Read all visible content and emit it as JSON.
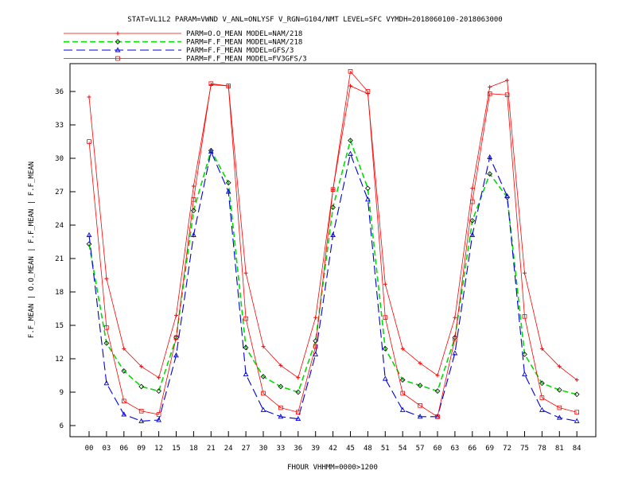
{
  "colors": {
    "background": "#ffffff",
    "frame": "#000000",
    "text": "#000000",
    "nam_obs": "#ff0000",
    "nam_fcst": "#00dd00",
    "gfs_fcst": "#0000dd",
    "fv3_fcst": "#ff0000"
  },
  "chart_data": {
    "type": "line",
    "title": "STAT=VL1L2 PARAM=VWND V_ANL=ONLYSF V_RGN=G104/NMT LEVEL=SFC VYMDH=2018060100-2018063000",
    "xlabel": "FHOUR VHHMM=0000>1200",
    "ylabel": "F.F_MEAN | O.O_MEAN | F.F_MEAN | F.F_MEAN",
    "x": [
      "00",
      "03",
      "06",
      "09",
      "12",
      "15",
      "18",
      "21",
      "24",
      "27",
      "30",
      "33",
      "36",
      "39",
      "42",
      "45",
      "48",
      "51",
      "54",
      "57",
      "60",
      "63",
      "66",
      "69",
      "72",
      "75",
      "78",
      "81",
      "84"
    ],
    "ylim": [
      5,
      38.5
    ],
    "yticks": [
      6,
      9,
      12,
      15,
      18,
      21,
      24,
      27,
      30,
      33,
      36
    ],
    "grid": false,
    "legend_position": "top-left",
    "series": [
      {
        "name": "PARM=O.O_MEAN MODEL=NAM/218",
        "marker": "plus",
        "dash": "solid",
        "color_key": "nam_obs",
        "values": [
          35.5,
          19.2,
          12.9,
          11.3,
          10.3,
          15.9,
          27.5,
          36.6,
          36.5,
          19.7,
          13.1,
          11.4,
          10.3,
          15.7,
          27.2,
          36.5,
          35.8,
          18.7,
          12.9,
          11.6,
          10.5,
          15.7,
          27.3,
          36.4,
          37.0,
          19.7,
          12.9,
          11.3,
          10.1
        ]
      },
      {
        "name": "PARM=F.F_MEAN MODEL=NAM/218",
        "marker": "diamond",
        "dash": "dashed",
        "color_key": "nam_fcst",
        "values": [
          22.3,
          13.4,
          10.9,
          9.5,
          9.1,
          13.9,
          25.3,
          30.7,
          27.8,
          13.0,
          10.4,
          9.5,
          9.0,
          13.6,
          25.6,
          31.6,
          27.3,
          12.9,
          10.1,
          9.6,
          9.1,
          13.9,
          24.4,
          28.6,
          26.5,
          12.4,
          9.8,
          9.2,
          8.8
        ]
      },
      {
        "name": "PARM=F.F_MEAN MODEL=GFS/3",
        "marker": "triangle",
        "dash": "long-dashed",
        "color_key": "gfs_fcst",
        "values": [
          23.1,
          9.8,
          7.0,
          6.4,
          6.5,
          12.3,
          23.1,
          30.6,
          27.0,
          10.6,
          7.4,
          6.8,
          6.6,
          12.4,
          23.1,
          30.4,
          26.3,
          10.2,
          7.4,
          6.8,
          6.8,
          12.5,
          23.1,
          30.1,
          26.6,
          10.6,
          7.4,
          6.7,
          6.4
        ]
      },
      {
        "name": "PARM=F.F_MEAN MODEL=FV3GFS/3",
        "marker": "square",
        "dash": "solid",
        "color_key": "fv3_fcst",
        "values": [
          31.5,
          14.8,
          8.2,
          7.3,
          7.0,
          13.9,
          26.3,
          36.7,
          36.5,
          15.6,
          8.9,
          7.6,
          7.2,
          13.1,
          27.2,
          37.8,
          36.0,
          15.7,
          8.9,
          7.8,
          6.8,
          13.8,
          26.1,
          35.8,
          35.7,
          15.8,
          8.5,
          7.6,
          7.2
        ]
      }
    ]
  }
}
